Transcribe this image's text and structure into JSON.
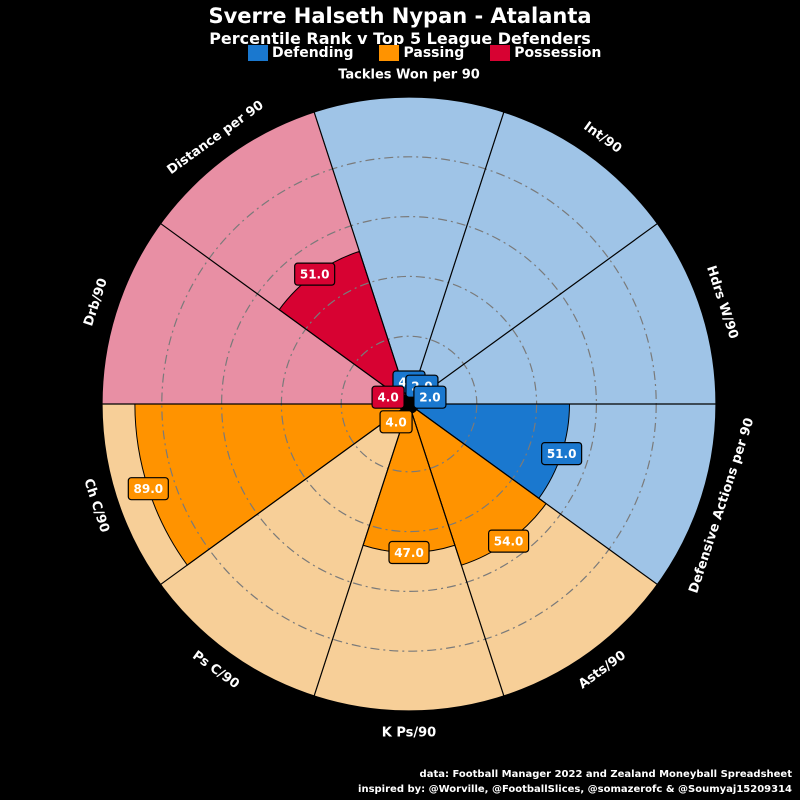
{
  "header": {
    "title": "Sverre Halseth Nypan - Atalanta",
    "subtitle": "Percentile Rank v Top 5 League Defenders"
  },
  "legend": [
    {
      "name": "Defending",
      "color": "#1A78CF"
    },
    {
      "name": "Passing",
      "color": "#FF9300"
    },
    {
      "name": "Possession",
      "color": "#D70232"
    }
  ],
  "footer": {
    "line1": "data: Football Manager 2022 and Zealand Moneyball Spreadsheet",
    "line2": "inspired by: @Worville, @FootballSlices, @somazerofc & @Soumyaj15209314"
  },
  "chart_data": {
    "type": "pie",
    "subtype": "radar-pizza",
    "range": [
      0,
      100
    ],
    "grid": true,
    "categories": [
      "Tackles Won per 90",
      "Int/90",
      "Hdrs W/90",
      "Defensive Actions per 90",
      "Asts/90",
      "K Ps/90",
      "Ps C/90",
      "Ch C/90",
      "Drb/90",
      "Distance per 90"
    ],
    "values": [
      4.0,
      2.0,
      2.0,
      51.0,
      54.0,
      47.0,
      4.0,
      89.0,
      4.0,
      51.0
    ],
    "groups": [
      "Defending",
      "Defending",
      "Defending",
      "Defending",
      "Passing",
      "Passing",
      "Passing",
      "Passing",
      "Possession",
      "Possession"
    ],
    "colors": {
      "Defending": {
        "fill": "#1A78CF",
        "bg": "#9FC4E7"
      },
      "Passing": {
        "fill": "#FF9300",
        "bg": "#F7CF98"
      },
      "Possession": {
        "fill": "#D70232",
        "bg": "#E88FA4"
      }
    }
  }
}
